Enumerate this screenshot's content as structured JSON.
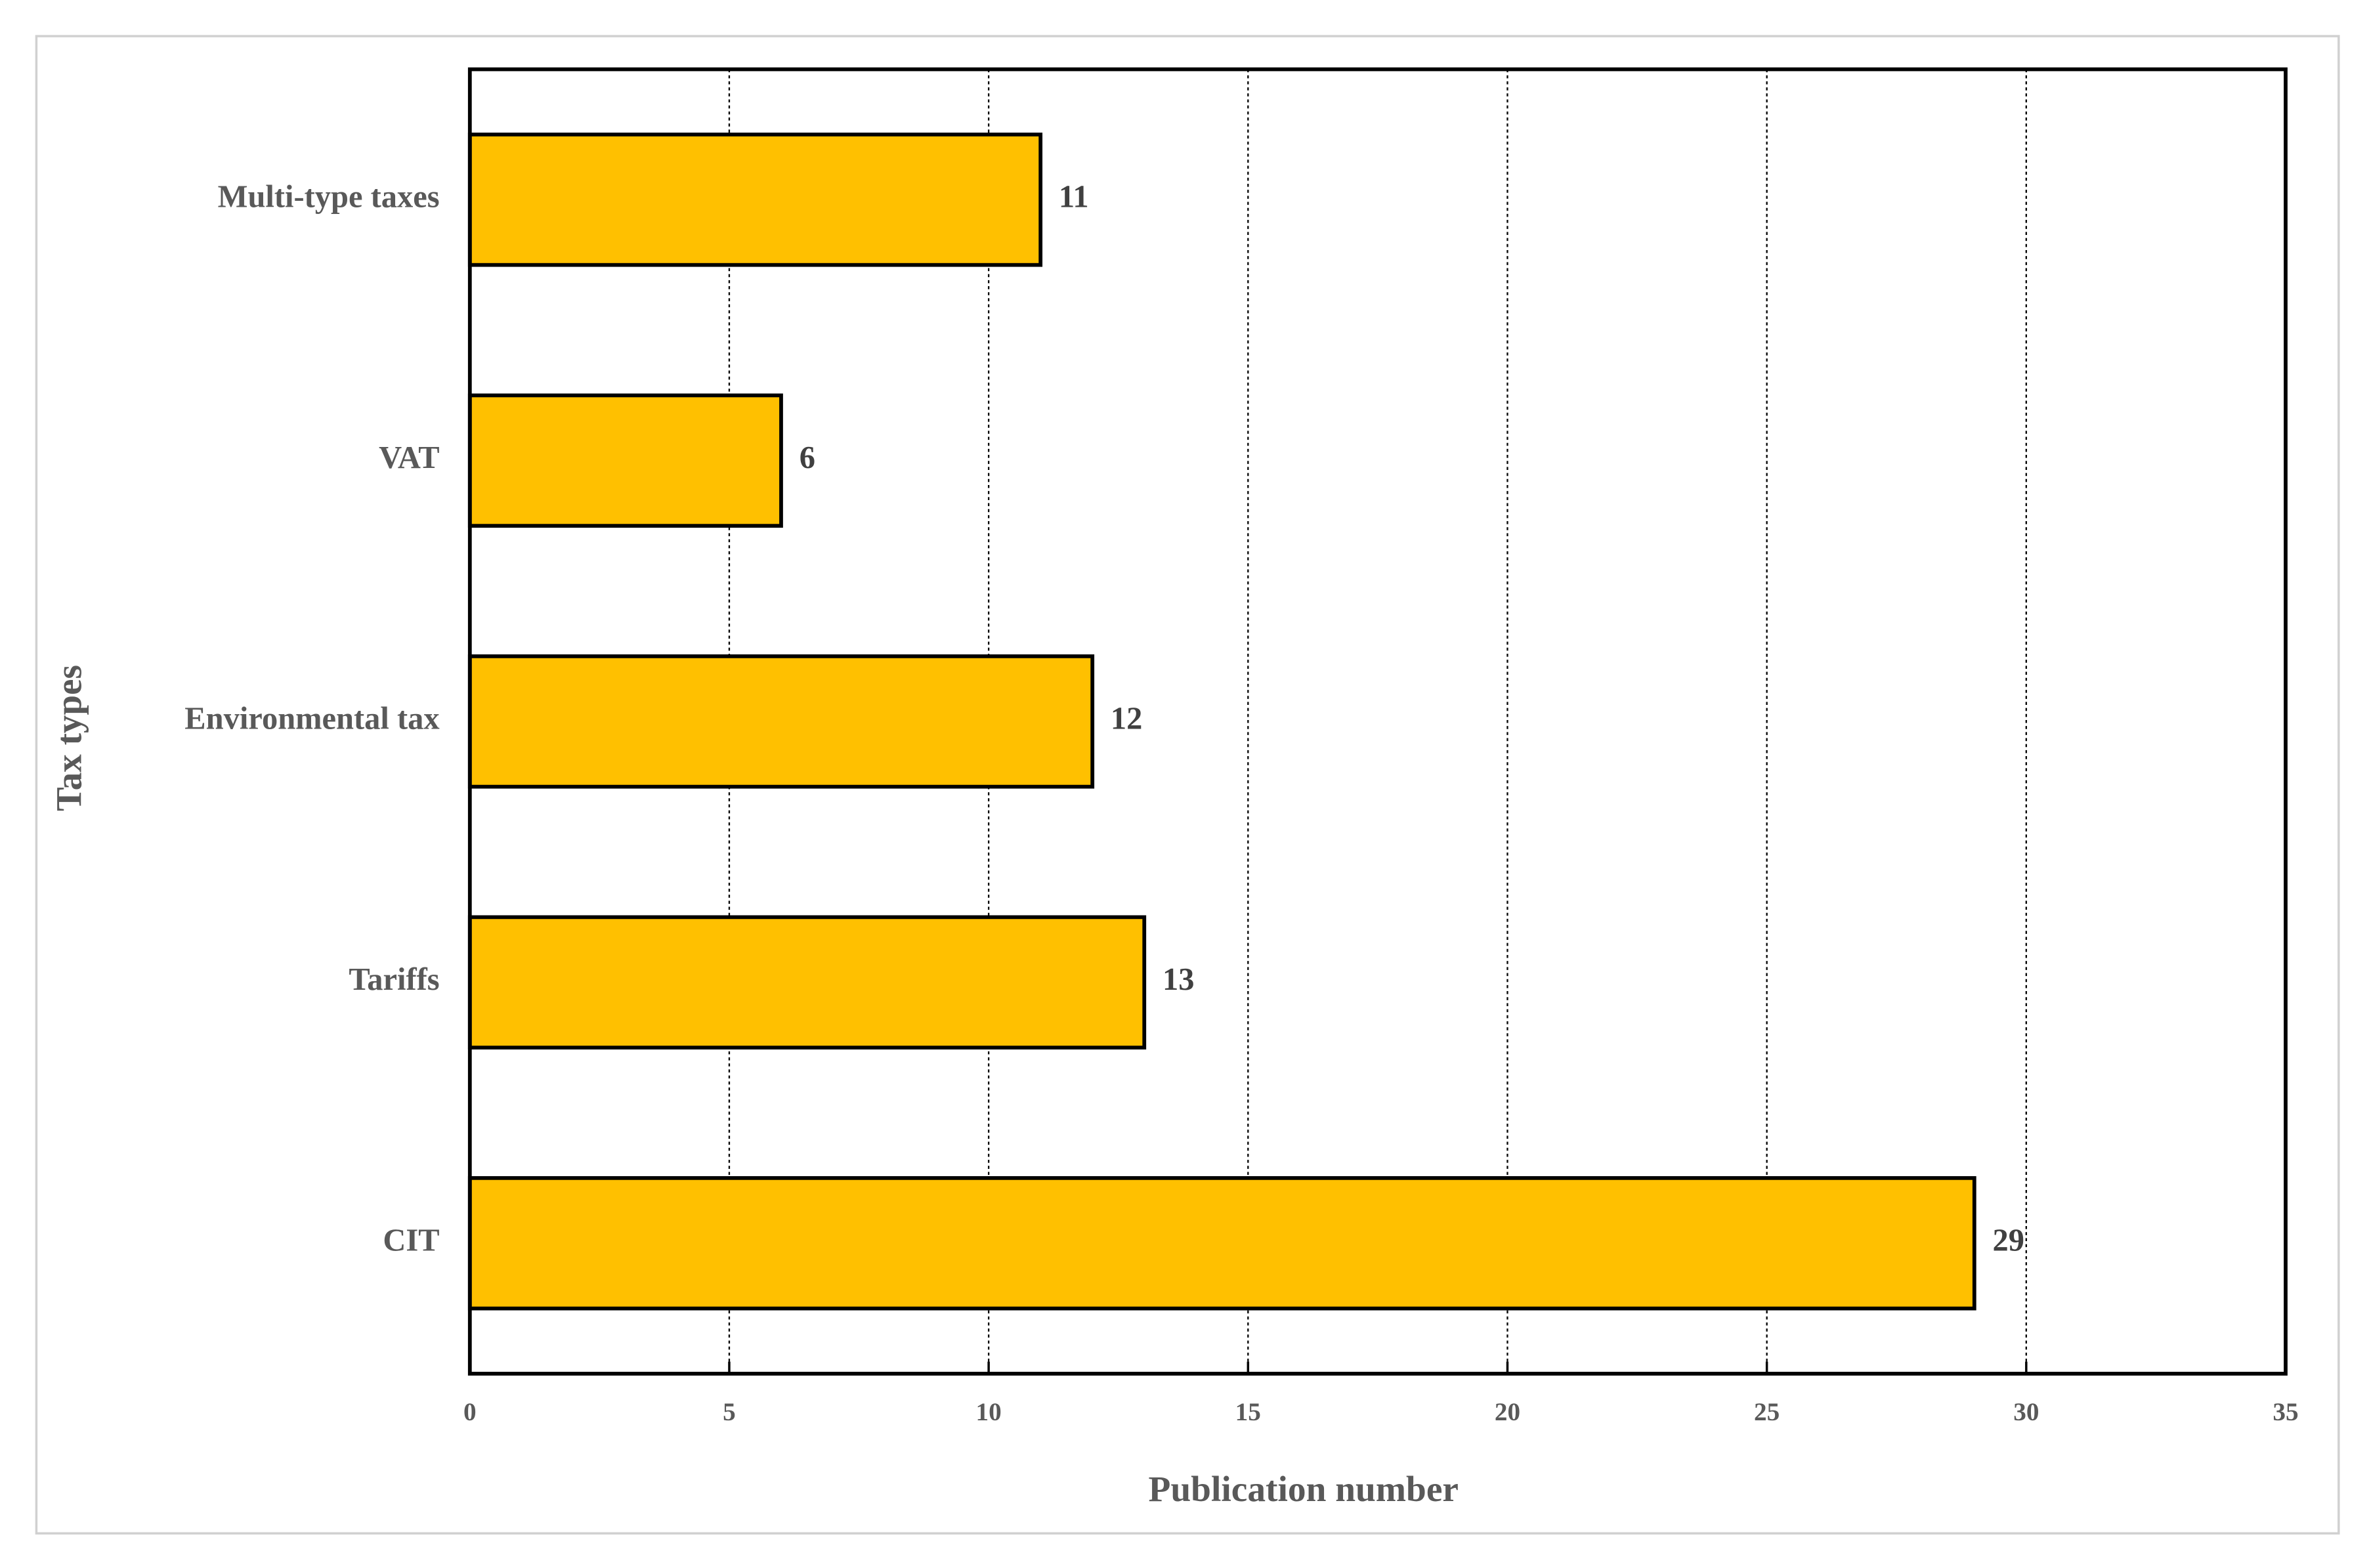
{
  "chart_data": {
    "type": "bar",
    "orientation": "horizontal",
    "x_label": "Publication number",
    "y_label": "Tax types",
    "categories": [
      "Multi-type taxes",
      "VAT",
      "Environmental tax",
      "Tariffs",
      "CIT"
    ],
    "values": [
      11,
      6,
      12,
      13,
      29
    ],
    "color": "#ffc000",
    "xlim": [
      0,
      35
    ],
    "xticks": [
      0,
      5,
      10,
      15,
      20,
      25,
      30,
      35
    ],
    "grid": true
  }
}
